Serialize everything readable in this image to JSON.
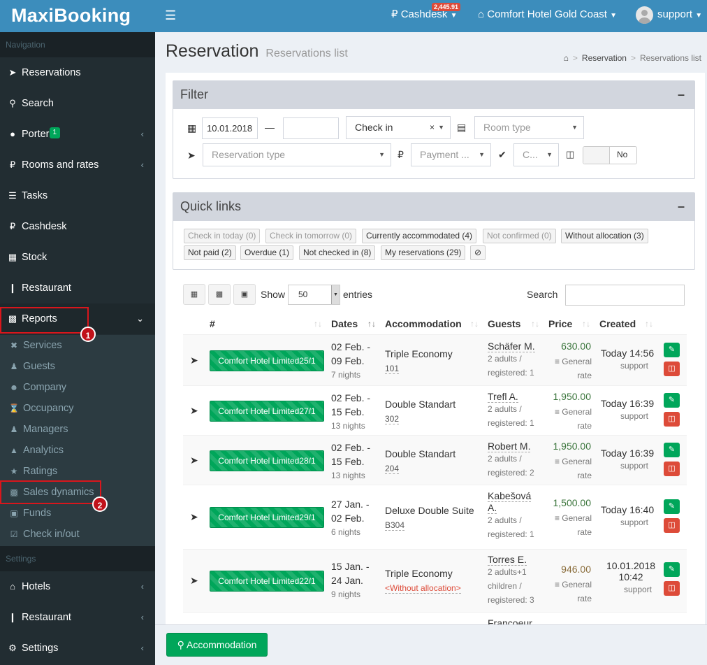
{
  "app": {
    "logo": "MaxiBooking"
  },
  "topbar": {
    "cashdesk_label": "Cashdesk",
    "cashdesk_badge": "2,445.91",
    "hotel_label": "Comfort Hotel Gold Coast",
    "user_label": "support"
  },
  "sidebar": {
    "nav_header": "Navigation",
    "items": [
      {
        "label": "Reservations",
        "icon": "paper-plane-icon"
      },
      {
        "label": "Search",
        "icon": "search-icon"
      },
      {
        "label": "Porter",
        "badge": "1",
        "icon": "bell-icon"
      },
      {
        "label": "Rooms and rates",
        "icon": "ruble-icon"
      },
      {
        "label": "Tasks",
        "icon": "list-icon"
      },
      {
        "label": "Cashdesk",
        "icon": "ruble-icon"
      },
      {
        "label": "Stock",
        "icon": "book-icon"
      },
      {
        "label": "Restaurant",
        "icon": "cutlery-icon"
      },
      {
        "label": "Reports",
        "icon": "bar-chart-icon"
      }
    ],
    "report_sub": [
      {
        "label": "Services"
      },
      {
        "label": "Guests"
      },
      {
        "label": "Company"
      },
      {
        "label": "Occupancy"
      },
      {
        "label": "Managers"
      },
      {
        "label": "Analytics"
      },
      {
        "label": "Ratings"
      },
      {
        "label": "Sales dynamics"
      },
      {
        "label": "Funds"
      },
      {
        "label": "Check in/out"
      }
    ],
    "settings_header": "Settings",
    "settings_items": [
      {
        "label": "Hotels"
      },
      {
        "label": "Restaurant"
      },
      {
        "label": "Settings"
      }
    ],
    "annotations": [
      "1",
      "2"
    ]
  },
  "header": {
    "title": "Reservation",
    "subtitle": "Reservations list"
  },
  "breadcrumb": {
    "item1": "Reservation",
    "item2": "Reservations list"
  },
  "filter": {
    "title": "Filter",
    "date_from": "10.01.2018",
    "date_to": "",
    "dash": "—",
    "date_type": "Check in",
    "room_type_placeholder": "Room type",
    "reservation_type_placeholder": "Reservation type",
    "payment_placeholder": "Payment ...",
    "confirm_placeholder": "C...",
    "toggle_label": "No"
  },
  "quick_links": {
    "title": "Quick links",
    "row1": [
      {
        "label": "Check in today (0)",
        "active": false
      },
      {
        "label": "Check in tomorrow (0)",
        "active": false
      },
      {
        "label": "Currently accommodated (4)",
        "active": true
      },
      {
        "label": "Not confirmed (0)",
        "active": false
      },
      {
        "label": "Without allocation (3)",
        "active": true
      }
    ],
    "row2": [
      {
        "label": "Not paid (2)"
      },
      {
        "label": "Overdue (1)"
      },
      {
        "label": "Not checked in (8)"
      },
      {
        "label": "My reservations (29)"
      }
    ]
  },
  "table_controls": {
    "show_label": "Show",
    "entries_value": "50",
    "entries_label": "entries",
    "search_label": "Search",
    "search_value": ""
  },
  "table": {
    "headers": [
      "#",
      "Dates",
      "Accommodation",
      "Guests",
      "Price",
      "Created"
    ],
    "rows": [
      {
        "hotel": "Comfort Hotel Limited25/1",
        "date1": "02 Feb. -",
        "date2": "09 Feb.",
        "nights": "7 nights",
        "accommodation": "Triple Economy",
        "room": "101",
        "guest": "Schäfer M.",
        "guest_line2": "2 adults /",
        "guest_line3": "registered: 1",
        "price": "630.00",
        "rate1": "General",
        "rate2": "rate",
        "created": "Today 14:56",
        "created_by": "support"
      },
      {
        "hotel": "Comfort Hotel Limited27/1",
        "date1": "02 Feb. -",
        "date2": "15 Feb.",
        "nights": "13 nights",
        "accommodation": "Double Standart",
        "room": "302",
        "guest": "Trefl A.",
        "guest_line2": "2 adults /",
        "guest_line3": "registered: 1",
        "price": "1,950.00",
        "rate1": "General",
        "rate2": "rate",
        "created": "Today 16:39",
        "created_by": "support"
      },
      {
        "hotel": "Comfort Hotel Limited28/1",
        "date1": "02 Feb. -",
        "date2": "15 Feb.",
        "nights": "13 nights",
        "accommodation": "Double Standart",
        "room": "204",
        "guest": "Robert M.",
        "guest_line2": "2 adults /",
        "guest_line3": "registered: 2",
        "price": "1,950.00",
        "rate1": "General",
        "rate2": "rate",
        "created": "Today 16:39",
        "created_by": "support"
      },
      {
        "hotel": "Comfort Hotel Limited29/1",
        "date1": "27 Jan. -",
        "date2": "02 Feb.",
        "nights": "6 nights",
        "accommodation": "Deluxe Double Suite",
        "room": "B304",
        "guest": "Kabešová",
        "guest_b": "A.",
        "guest_line2": "2 adults /",
        "guest_line3": "registered: 1",
        "price": "1,500.00",
        "rate1": "General",
        "rate2": "rate",
        "created": "Today 16:40",
        "created_by": "support"
      },
      {
        "hotel": "Comfort Hotel Limited22/1",
        "date1": "15 Jan. -",
        "date2": "24 Jan.",
        "nights": "9 nights",
        "accommodation": "Triple Economy",
        "room": "<Without allocation>",
        "guest": "Torres E.",
        "guest_line2": "2 adults+1",
        "guest_line2b": "children /",
        "guest_line3": "registered: 3",
        "price": "946.00",
        "rate1": "General",
        "rate2": "rate",
        "created": "10.01.2018",
        "created_time": "10:42",
        "created_by": "support"
      },
      {
        "guest": "Francoeur"
      }
    ]
  },
  "bottom": {
    "accommodation_button": "Accommodation"
  }
}
